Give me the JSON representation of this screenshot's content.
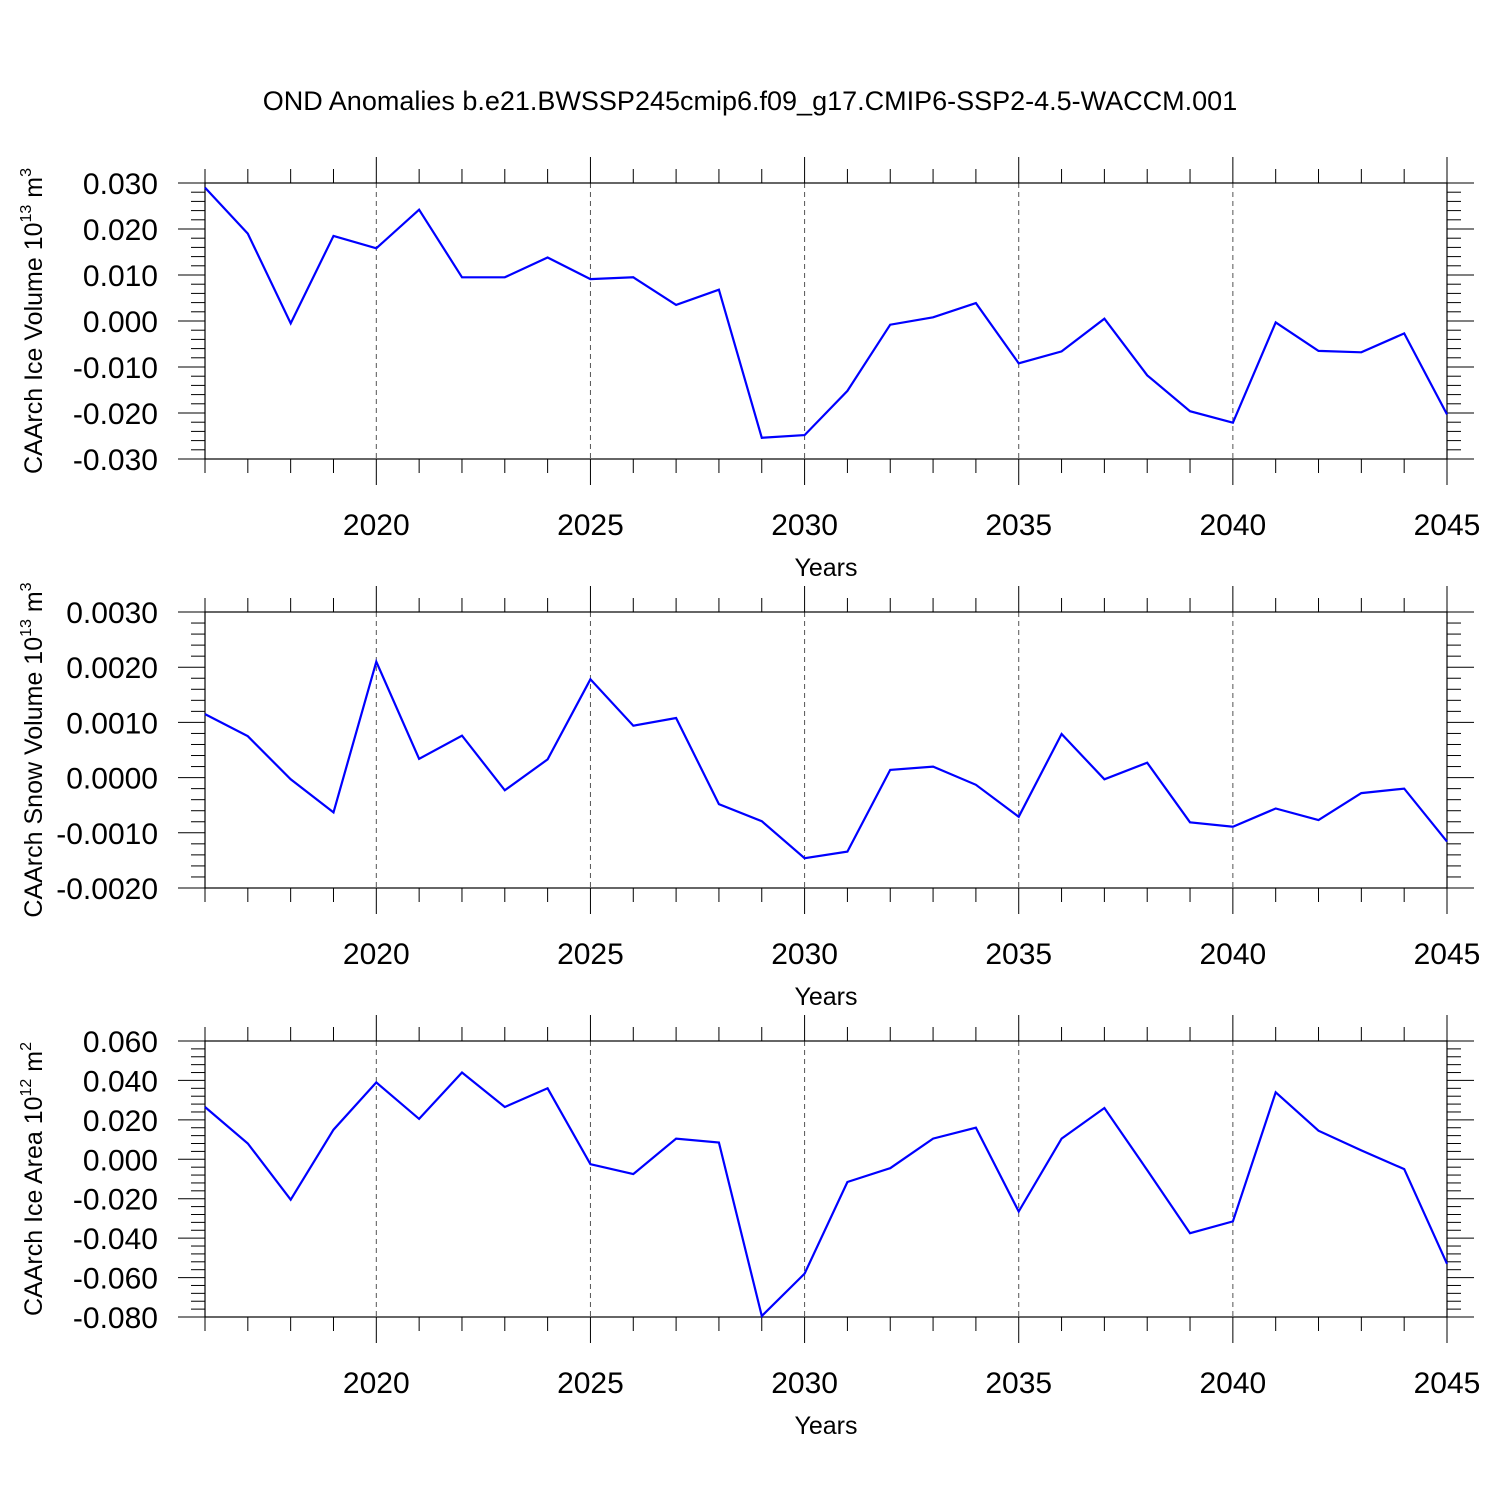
{
  "title": "OND Anomalies b.e21.BWSSP245cmip6.f09_g17.CMIP6-SSP2-4.5-WACCM.001",
  "chart_data": [
    {
      "type": "line",
      "title": "OND Anomalies b.e21.BWSSP245cmip6.f09_g17.CMIP6-SSP2-4.5-WACCM.001",
      "xlabel": "Years",
      "ylabel": "CAArch Ice Volume 10",
      "ylabel_exp": "13",
      "ylabel_unit": " m",
      "ylabel_unit_exp": "3",
      "xlim": [
        2016,
        2045
      ],
      "ylim": [
        -0.03,
        0.03
      ],
      "yticks": [
        -0.03,
        -0.02,
        -0.01,
        0.0,
        0.01,
        0.02,
        0.03
      ],
      "ytick_labels": [
        "-0.030",
        "-0.020",
        "-0.010",
        "0.000",
        "0.010",
        "0.020",
        "0.030"
      ],
      "xticks": [
        2020,
        2025,
        2030,
        2035,
        2040,
        2045
      ],
      "xtick_labels": [
        "2020",
        "2025",
        "2030",
        "2035",
        "2040",
        "2045"
      ],
      "grid": "dashed vertical at major x ticks",
      "series": [
        {
          "name": "CAArch Ice Volume",
          "color": "#0000ff",
          "x": [
            2016,
            2017,
            2018,
            2019,
            2020,
            2021,
            2022,
            2023,
            2024,
            2025,
            2026,
            2027,
            2028,
            2029,
            2030,
            2031,
            2032,
            2033,
            2034,
            2035,
            2036,
            2037,
            2038,
            2039,
            2040,
            2041,
            2042,
            2043,
            2044,
            2045
          ],
          "values": [
            0.029,
            0.019,
            -0.0005,
            0.0185,
            0.0158,
            0.0242,
            0.0095,
            0.0095,
            0.0138,
            0.0091,
            0.0095,
            0.0035,
            0.0068,
            -0.0254,
            -0.0248,
            -0.0152,
            -0.0008,
            0.0008,
            0.0039,
            -0.0092,
            -0.0066,
            0.0005,
            -0.0118,
            -0.0196,
            -0.0221,
            -0.0003,
            -0.0065,
            -0.0068,
            -0.0027,
            -0.0203
          ]
        }
      ]
    },
    {
      "type": "line",
      "xlabel": "Years",
      "ylabel": "CAArch Snow Volume 10",
      "ylabel_exp": "13",
      "ylabel_unit": " m",
      "ylabel_unit_exp": "3",
      "xlim": [
        2016,
        2045
      ],
      "ylim": [
        -0.002,
        0.003
      ],
      "yticks": [
        -0.002,
        -0.001,
        0.0,
        0.001,
        0.002,
        0.003
      ],
      "ytick_labels": [
        "-0.0020",
        "-0.0010",
        "0.0000",
        "0.0010",
        "0.0020",
        "0.0030"
      ],
      "xticks": [
        2020,
        2025,
        2030,
        2035,
        2040,
        2045
      ],
      "xtick_labels": [
        "2020",
        "2025",
        "2030",
        "2035",
        "2040",
        "2045"
      ],
      "grid": "dashed vertical at major x ticks",
      "series": [
        {
          "name": "CAArch Snow Volume",
          "color": "#0000ff",
          "x": [
            2016,
            2017,
            2018,
            2019,
            2020,
            2021,
            2022,
            2023,
            2024,
            2025,
            2026,
            2027,
            2028,
            2029,
            2030,
            2031,
            2032,
            2033,
            2034,
            2035,
            2036,
            2037,
            2038,
            2039,
            2040,
            2041,
            2042,
            2043,
            2044,
            2045
          ],
          "values": [
            0.00115,
            0.00075,
            -3e-05,
            -0.00063,
            0.0021,
            0.00034,
            0.00076,
            -0.00023,
            0.00033,
            0.00178,
            0.00094,
            0.00108,
            -0.00048,
            -0.00079,
            -0.00146,
            -0.00134,
            0.00014,
            0.0002,
            -0.00013,
            -0.00071,
            0.00079,
            -3e-05,
            0.00027,
            -0.00081,
            -0.00089,
            -0.00056,
            -0.00077,
            -0.00028,
            -0.0002,
            -0.00116
          ]
        }
      ]
    },
    {
      "type": "line",
      "xlabel": "Years",
      "ylabel": "CAArch Ice Area 10",
      "ylabel_exp": "12",
      "ylabel_unit": " m",
      "ylabel_unit_exp": "2",
      "xlim": [
        2016,
        2045
      ],
      "ylim": [
        -0.08,
        0.06
      ],
      "yticks": [
        -0.08,
        -0.06,
        -0.04,
        -0.02,
        0.0,
        0.02,
        0.04,
        0.06
      ],
      "ytick_labels": [
        "-0.080",
        "-0.060",
        "-0.040",
        "-0.020",
        "0.000",
        "0.020",
        "0.040",
        "0.060"
      ],
      "xticks": [
        2020,
        2025,
        2030,
        2035,
        2040,
        2045
      ],
      "xtick_labels": [
        "2020",
        "2025",
        "2030",
        "2035",
        "2040",
        "2045"
      ],
      "grid": "dashed vertical at major x ticks",
      "series": [
        {
          "name": "CAArch Ice Area",
          "color": "#0000ff",
          "x": [
            2016,
            2017,
            2018,
            2019,
            2020,
            2021,
            2022,
            2023,
            2024,
            2025,
            2026,
            2027,
            2028,
            2029,
            2030,
            2031,
            2032,
            2033,
            2034,
            2035,
            2036,
            2037,
            2038,
            2039,
            2040,
            2041,
            2042,
            2043,
            2044,
            2045
          ],
          "values": [
            0.0265,
            0.008,
            -0.0205,
            0.015,
            0.039,
            0.0205,
            0.044,
            0.0265,
            0.036,
            -0.0025,
            -0.0075,
            0.0105,
            0.0085,
            -0.0795,
            -0.058,
            -0.0115,
            -0.0045,
            0.0105,
            0.016,
            -0.0265,
            0.0105,
            0.026,
            -0.0055,
            -0.0375,
            -0.0315,
            0.034,
            0.0145,
            0.0045,
            -0.005,
            -0.053
          ]
        }
      ]
    }
  ]
}
